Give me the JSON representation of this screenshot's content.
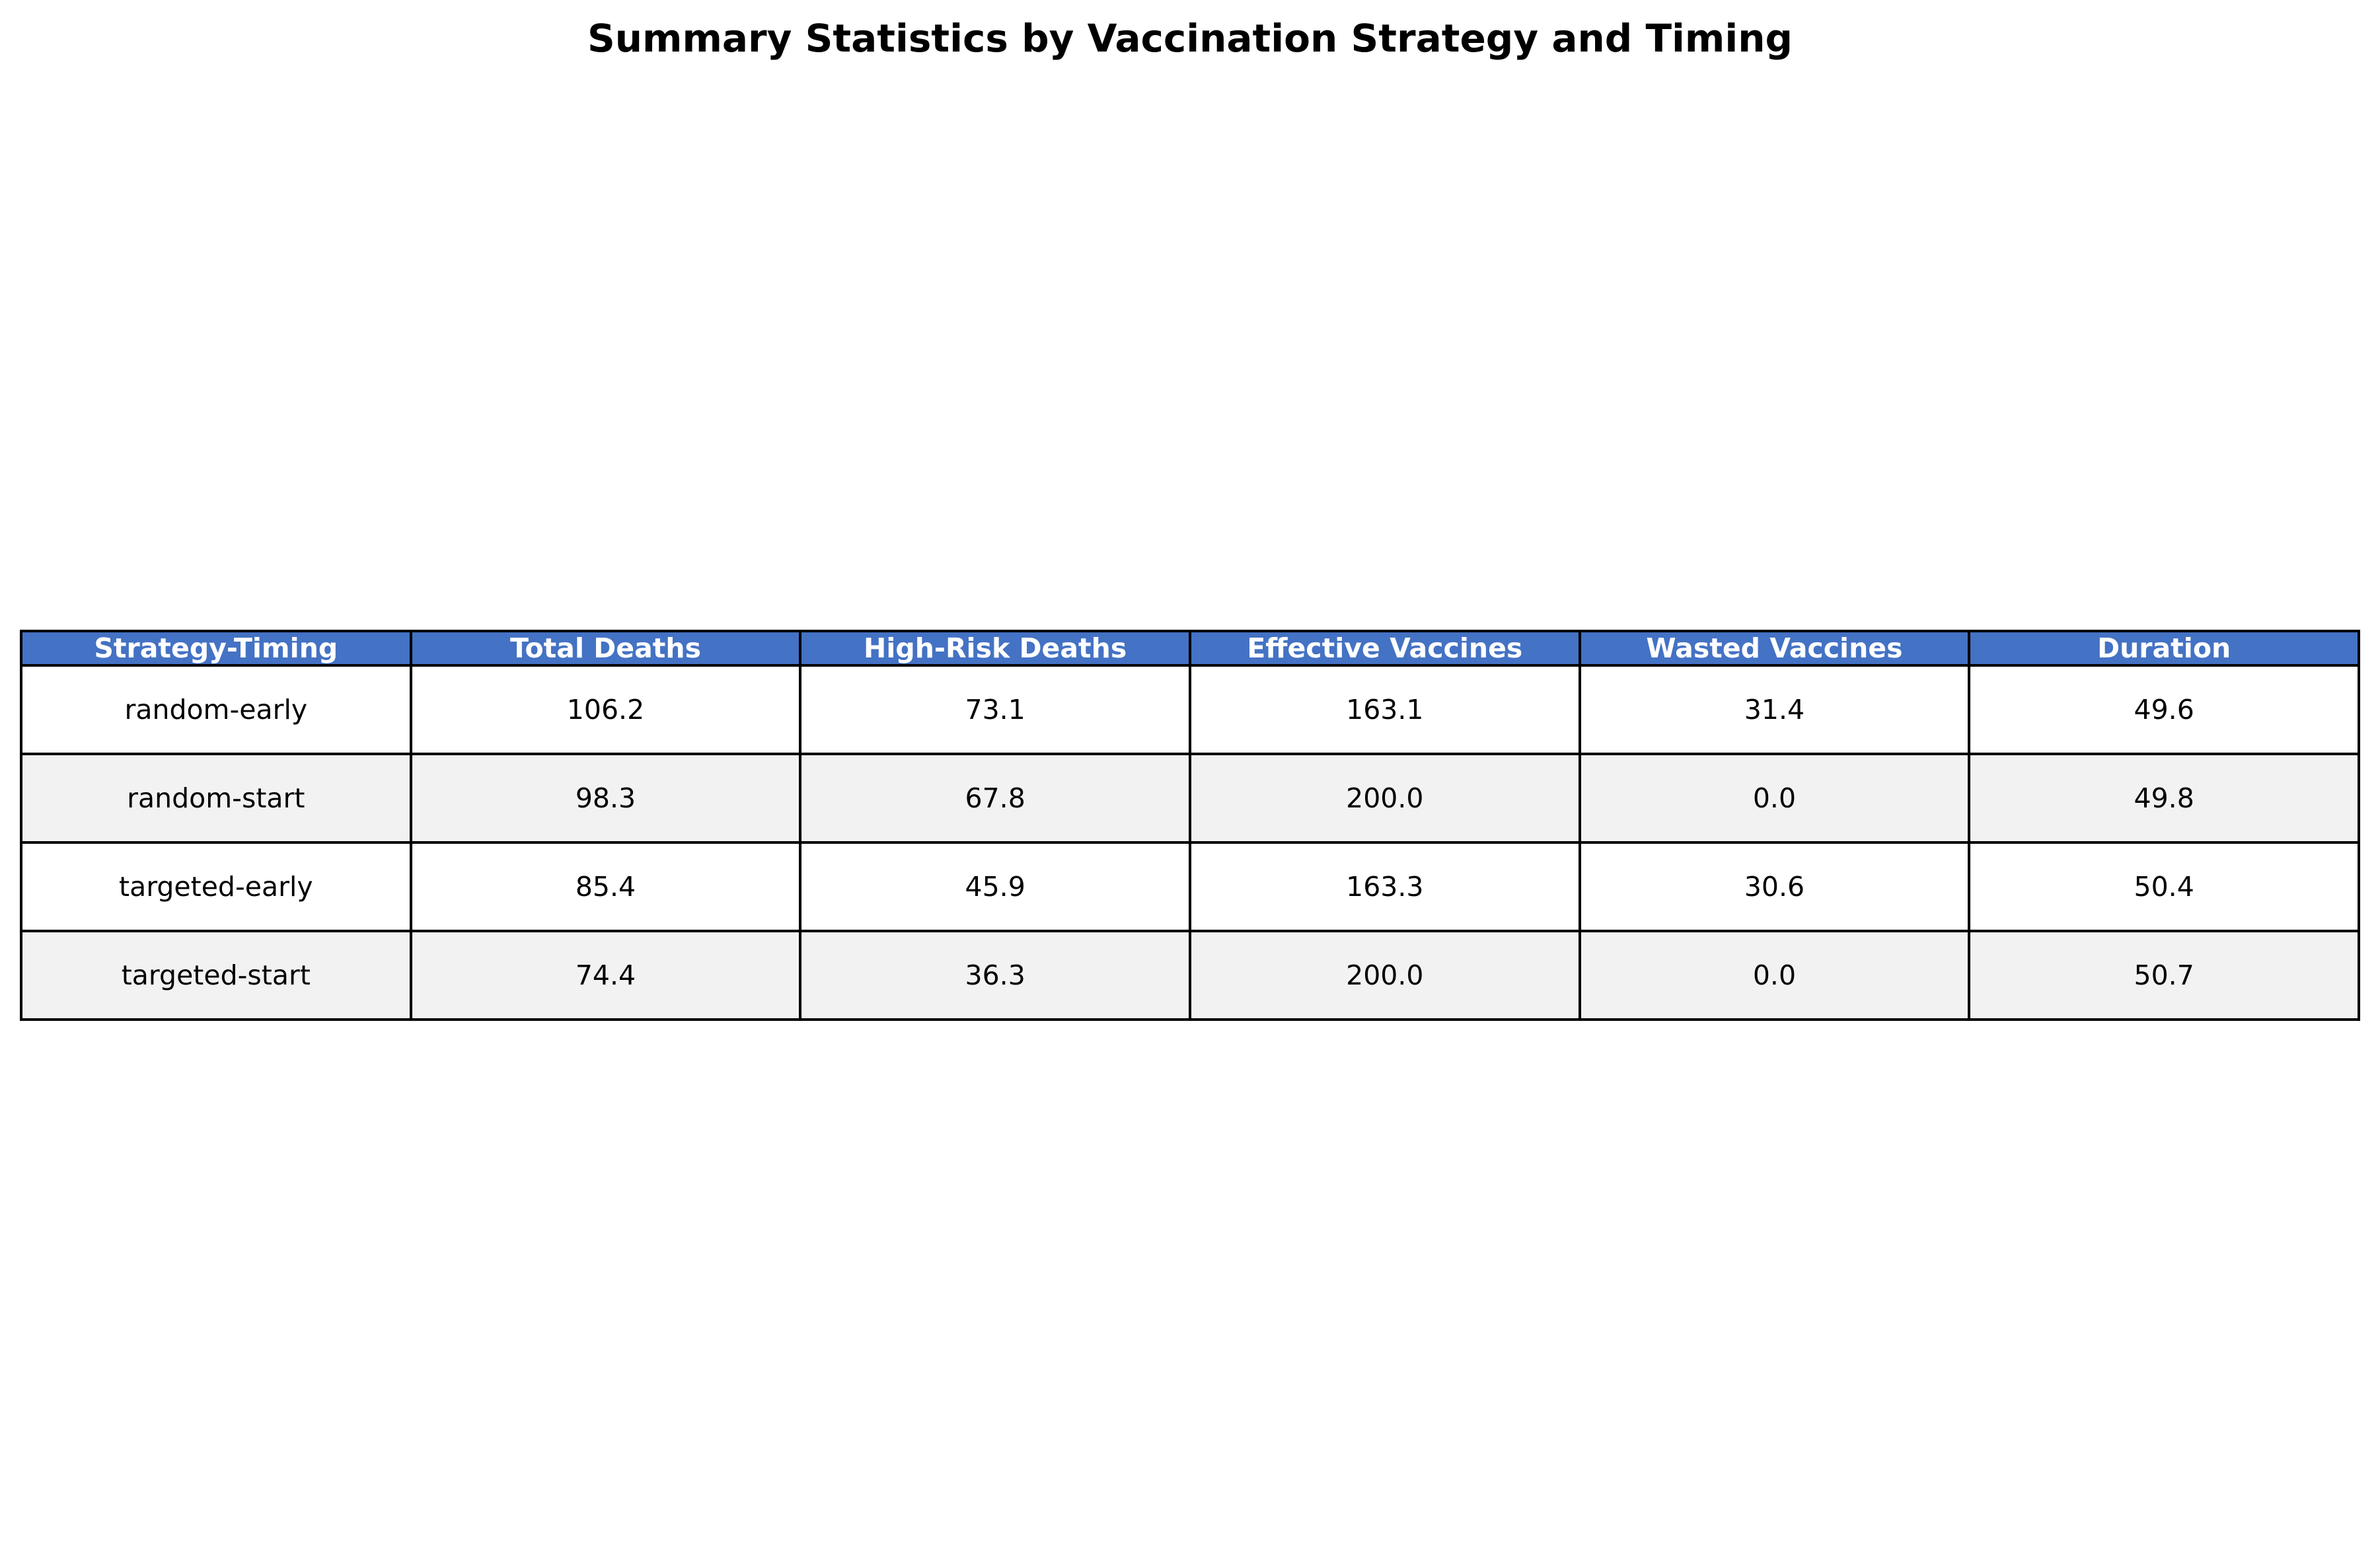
{
  "chart_data": {
    "type": "table",
    "title": "Summary Statistics by Vaccination Strategy and Timing",
    "columns": [
      "Strategy-Timing",
      "Total Deaths",
      "High-Risk Deaths",
      "Effective Vaccines",
      "Wasted Vaccines",
      "Duration"
    ],
    "rows": [
      [
        "random-early",
        "106.2",
        "73.1",
        "163.1",
        "31.4",
        "49.6"
      ],
      [
        "random-start",
        "98.3",
        "67.8",
        "200.0",
        "0.0",
        "49.8"
      ],
      [
        "targeted-early",
        "85.4",
        "45.9",
        "163.3",
        "30.6",
        "50.4"
      ],
      [
        "targeted-start",
        "74.4",
        "36.3",
        "200.0",
        "0.0",
        "50.7"
      ]
    ],
    "colors": {
      "header_background": "#4472c4",
      "header_text": "#ffffff",
      "row_even_background": "#ffffff",
      "row_odd_background": "#f2f2f2",
      "border": "#000000"
    }
  }
}
